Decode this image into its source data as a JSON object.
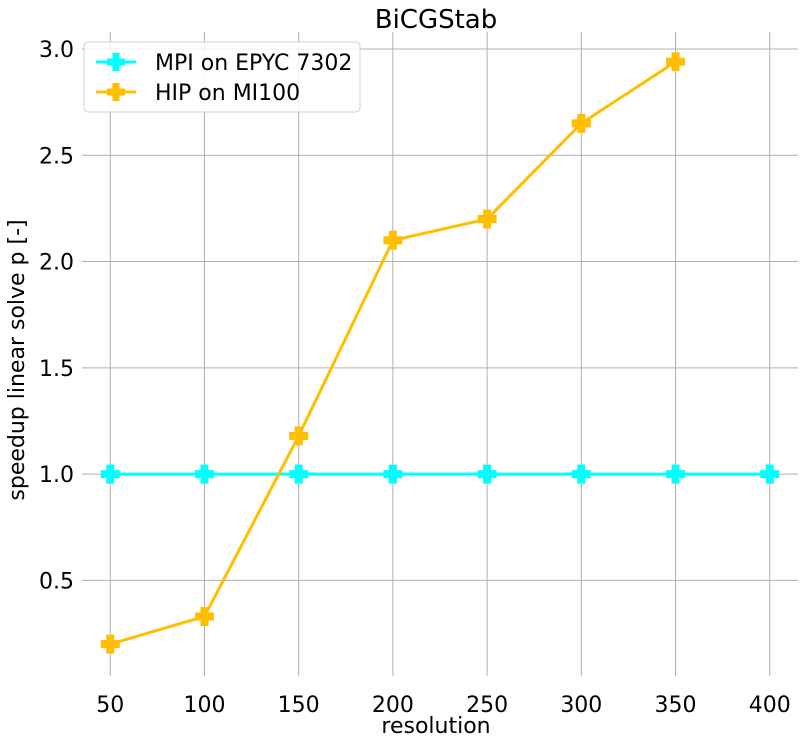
{
  "chart_data": {
    "type": "line",
    "title": "BiCGStab",
    "xlabel": "resolution",
    "ylabel": "speedup linear solve p [-]",
    "x_ticks": [
      50,
      100,
      150,
      200,
      250,
      300,
      350,
      400
    ],
    "y_ticks": [
      0.5,
      1.0,
      1.5,
      2.0,
      2.5,
      3.0
    ],
    "y_tick_labels": [
      "0.5",
      "1.0",
      "1.5",
      "2.0",
      "2.5",
      "3.0"
    ],
    "xlim": [
      35,
      415
    ],
    "ylim": [
      0.05,
      3.08
    ],
    "grid": true,
    "legend_position": "top-left",
    "series": [
      {
        "name": "MPI on EPYC 7302",
        "color": "#00ffff",
        "marker": "plus",
        "x": [
          50,
          100,
          150,
          200,
          250,
          300,
          350,
          400
        ],
        "y": [
          1.0,
          1.0,
          1.0,
          1.0,
          1.0,
          1.0,
          1.0,
          1.0
        ]
      },
      {
        "name": "HIP on MI100",
        "color": "#ffbf00",
        "marker": "plus",
        "x": [
          50,
          100,
          150,
          200,
          250,
          300,
          350
        ],
        "y": [
          0.2,
          0.33,
          1.18,
          2.1,
          2.2,
          2.65,
          2.94
        ]
      }
    ]
  }
}
